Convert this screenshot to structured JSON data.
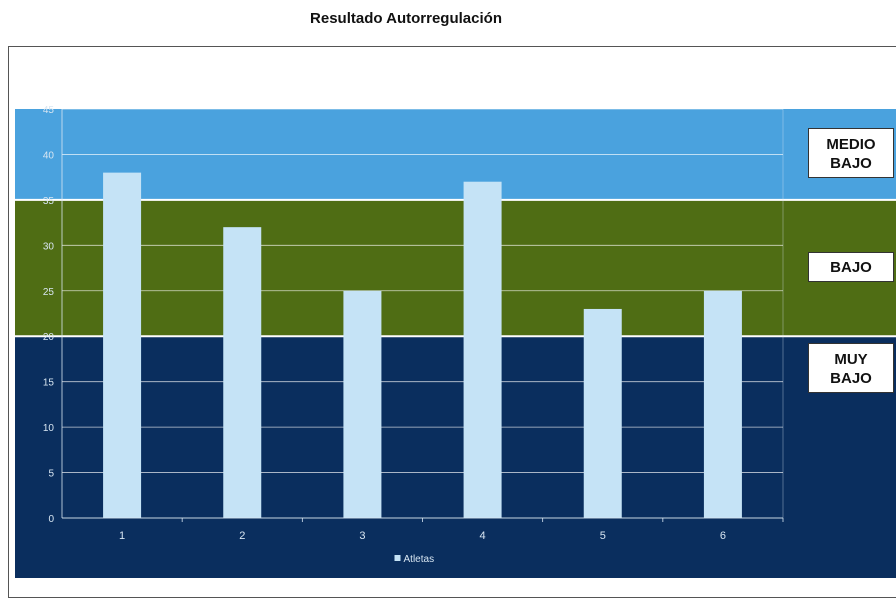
{
  "chart_data": {
    "type": "bar",
    "title": "Resultado Autorregulación",
    "categories": [
      "1",
      "2",
      "3",
      "4",
      "5",
      "6"
    ],
    "series": [
      {
        "name": "Atletas",
        "values": [
          38,
          32,
          25,
          37,
          23,
          25
        ]
      }
    ],
    "ylim": [
      0,
      45
    ],
    "yticks": [
      "0",
      "5",
      "10",
      "15",
      "20",
      "25",
      "30",
      "35",
      "40",
      "45"
    ],
    "grid": true,
    "legend": "bottom",
    "zones": [
      {
        "label": "MUY BAJO",
        "lines": [
          "MUY",
          "BAJO"
        ],
        "from": 0,
        "to": 20,
        "color": "#0a2e5e"
      },
      {
        "label": "BAJO",
        "lines": [
          "BAJO"
        ],
        "from": 20,
        "to": 35,
        "color": "#4f6d14"
      },
      {
        "label": "MEDIO BAJO",
        "lines": [
          "MEDIO",
          "BAJO"
        ],
        "from": 35,
        "to": 45,
        "color": "#4aa2de"
      }
    ],
    "colors": {
      "bar": "#c5e3f6",
      "gridline": "#ffffff"
    }
  }
}
